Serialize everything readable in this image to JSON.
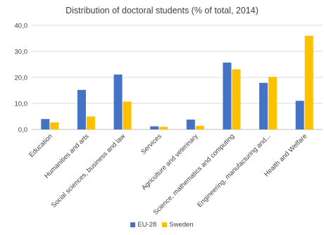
{
  "chart_data": {
    "type": "bar",
    "title": "Distribution of doctoral students (% of total, 2014)",
    "xlabel": "",
    "ylabel": "",
    "ylim": [
      0,
      40
    ],
    "yticks": [
      "0,0",
      "10,0",
      "20,0",
      "30,0",
      "40,0"
    ],
    "grid": true,
    "legend": "bottom",
    "categories": [
      "Education",
      "Humanities and arts",
      "Social sciences, business and law",
      "Services",
      "Agriculture and veterinary",
      "Science, mathematics and computing",
      "Engineering, manufacturing and...",
      "Health and Welfare"
    ],
    "series": [
      {
        "name": "EU-28",
        "color": "#4472c4",
        "values": [
          4.0,
          15.2,
          21.1,
          1.2,
          3.8,
          25.7,
          17.9,
          11.0
        ]
      },
      {
        "name": "Sweden",
        "color": "#ffc000",
        "values": [
          2.7,
          5.0,
          10.7,
          1.0,
          1.4,
          23.1,
          20.2,
          36.0
        ]
      }
    ]
  }
}
